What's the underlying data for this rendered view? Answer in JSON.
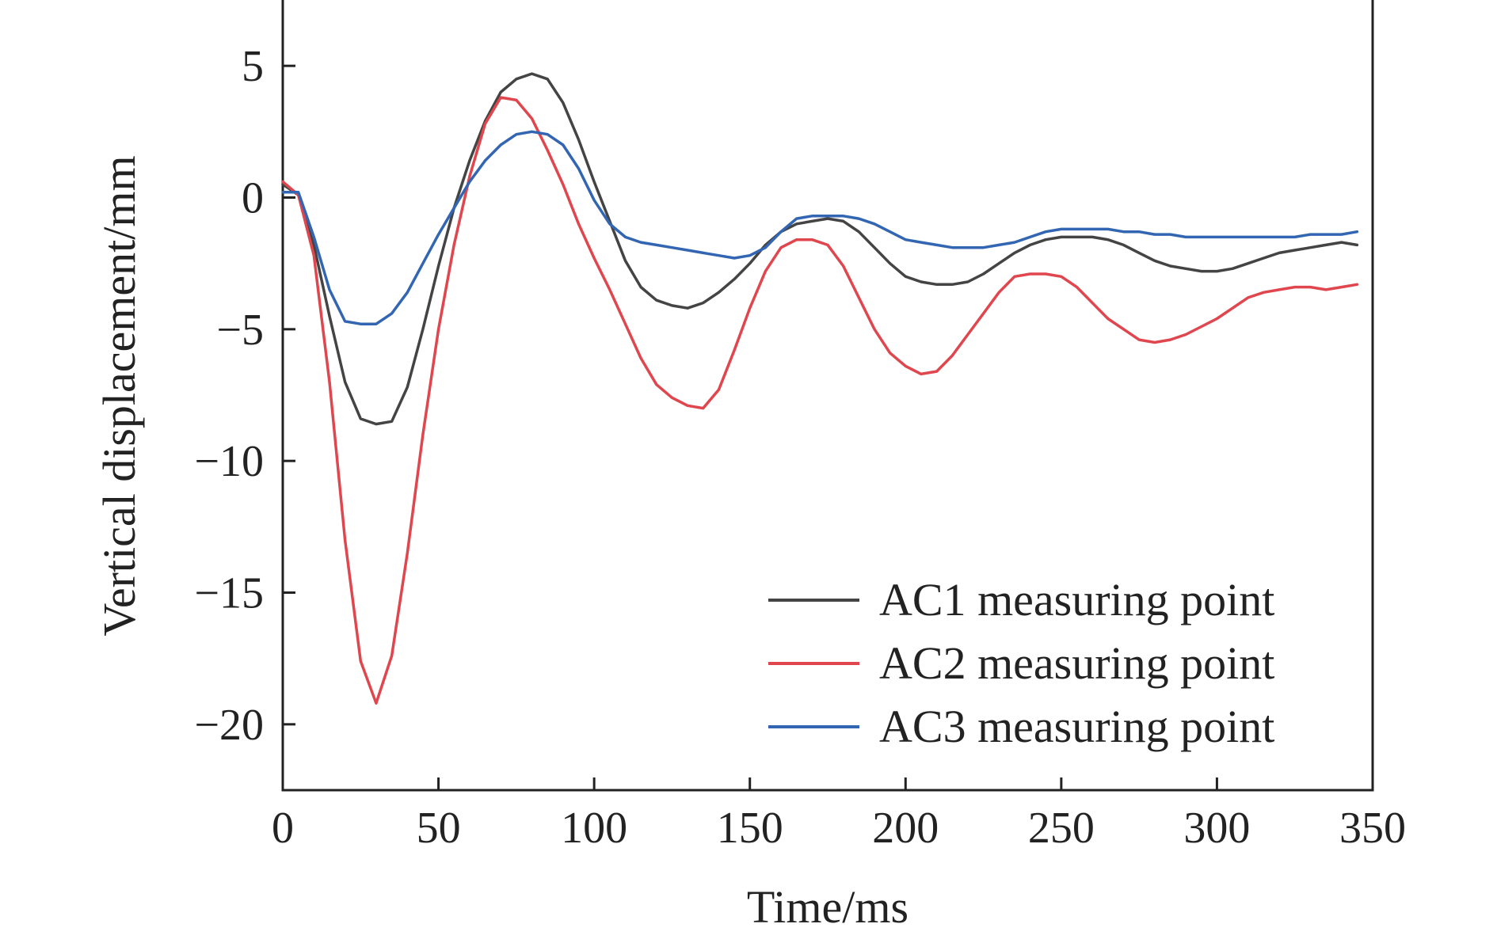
{
  "chart_data": {
    "type": "line",
    "title": "",
    "xlabel": "Time/ms",
    "ylabel": "Vertical displacement/mm",
    "xlim": [
      0,
      350
    ],
    "ylim": [
      -22.5,
      7.5
    ],
    "x_ticks": [
      0,
      50,
      100,
      150,
      200,
      250,
      300,
      350
    ],
    "x_tick_labels": [
      "0",
      "50",
      "100",
      "150",
      "200",
      "250",
      "300",
      "350"
    ],
    "y_ticks": [
      5,
      0,
      -5,
      -10,
      -15,
      -20
    ],
    "y_tick_labels": [
      "5",
      "0",
      "−5",
      "−10",
      "−15",
      "−20"
    ],
    "grid": false,
    "legend_position": "bottom-right",
    "series": [
      {
        "name": "AC1 measuring point",
        "color": "#444444",
        "x": [
          0,
          5,
          10,
          15,
          20,
          25,
          30,
          35,
          40,
          45,
          50,
          55,
          60,
          65,
          70,
          75,
          80,
          85,
          90,
          95,
          100,
          105,
          110,
          115,
          120,
          125,
          130,
          135,
          140,
          145,
          150,
          155,
          160,
          165,
          170,
          175,
          180,
          185,
          190,
          195,
          200,
          205,
          210,
          215,
          220,
          225,
          230,
          235,
          240,
          245,
          250,
          255,
          260,
          265,
          270,
          275,
          280,
          285,
          290,
          295,
          300,
          305,
          310,
          315,
          320,
          325,
          330,
          335,
          340,
          345
        ],
        "y": [
          0.5,
          0.1,
          -1.8,
          -4.5,
          -7.0,
          -8.4,
          -8.6,
          -8.5,
          -7.2,
          -5.0,
          -2.6,
          -0.4,
          1.4,
          2.9,
          4.0,
          4.5,
          4.7,
          4.5,
          3.6,
          2.2,
          0.6,
          -0.9,
          -2.4,
          -3.4,
          -3.9,
          -4.1,
          -4.2,
          -4.0,
          -3.6,
          -3.1,
          -2.5,
          -1.8,
          -1.3,
          -1.0,
          -0.9,
          -0.8,
          -0.9,
          -1.3,
          -1.9,
          -2.5,
          -3.0,
          -3.2,
          -3.3,
          -3.3,
          -3.2,
          -2.9,
          -2.5,
          -2.1,
          -1.8,
          -1.6,
          -1.5,
          -1.5,
          -1.5,
          -1.6,
          -1.8,
          -2.1,
          -2.4,
          -2.6,
          -2.7,
          -2.8,
          -2.8,
          -2.7,
          -2.5,
          -2.3,
          -2.1,
          -2.0,
          -1.9,
          -1.8,
          -1.7,
          -1.8
        ]
      },
      {
        "name": "AC2 measuring point",
        "color": "#e0464e",
        "x": [
          0,
          5,
          10,
          15,
          20,
          25,
          30,
          35,
          40,
          45,
          50,
          55,
          60,
          65,
          70,
          75,
          80,
          85,
          90,
          95,
          100,
          105,
          110,
          115,
          120,
          125,
          130,
          135,
          140,
          145,
          150,
          155,
          160,
          165,
          170,
          175,
          180,
          185,
          190,
          195,
          200,
          205,
          210,
          215,
          220,
          225,
          230,
          235,
          240,
          245,
          250,
          255,
          260,
          265,
          270,
          275,
          280,
          285,
          290,
          295,
          300,
          305,
          310,
          315,
          320,
          325,
          330,
          335,
          340,
          345
        ],
        "y": [
          0.6,
          0.1,
          -2.2,
          -7.0,
          -13.0,
          -17.6,
          -19.2,
          -17.4,
          -13.5,
          -9.0,
          -5.0,
          -1.8,
          0.8,
          2.8,
          3.8,
          3.7,
          3.0,
          1.8,
          0.5,
          -1.0,
          -2.3,
          -3.5,
          -4.8,
          -6.1,
          -7.1,
          -7.6,
          -7.9,
          -8.0,
          -7.3,
          -5.8,
          -4.2,
          -2.8,
          -1.9,
          -1.6,
          -1.6,
          -1.8,
          -2.6,
          -3.8,
          -5.0,
          -5.9,
          -6.4,
          -6.7,
          -6.6,
          -6.0,
          -5.2,
          -4.4,
          -3.6,
          -3.0,
          -2.9,
          -2.9,
          -3.0,
          -3.4,
          -4.0,
          -4.6,
          -5.0,
          -5.4,
          -5.5,
          -5.4,
          -5.2,
          -4.9,
          -4.6,
          -4.2,
          -3.8,
          -3.6,
          -3.5,
          -3.4,
          -3.4,
          -3.5,
          -3.4,
          -3.3
        ]
      },
      {
        "name": "AC3 measuring point",
        "color": "#3366b2",
        "x": [
          0,
          5,
          10,
          15,
          20,
          25,
          30,
          35,
          40,
          45,
          50,
          55,
          60,
          65,
          70,
          75,
          80,
          85,
          90,
          95,
          100,
          105,
          110,
          115,
          120,
          125,
          130,
          135,
          140,
          145,
          150,
          155,
          160,
          165,
          170,
          175,
          180,
          185,
          190,
          195,
          200,
          205,
          210,
          215,
          220,
          225,
          230,
          235,
          240,
          245,
          250,
          255,
          260,
          265,
          270,
          275,
          280,
          285,
          290,
          295,
          300,
          305,
          310,
          315,
          320,
          325,
          330,
          335,
          340,
          345
        ],
        "y": [
          0.2,
          0.2,
          -1.5,
          -3.5,
          -4.7,
          -4.8,
          -4.8,
          -4.4,
          -3.6,
          -2.5,
          -1.4,
          -0.4,
          0.6,
          1.4,
          2.0,
          2.4,
          2.5,
          2.4,
          2.0,
          1.1,
          -0.1,
          -1.0,
          -1.5,
          -1.7,
          -1.8,
          -1.9,
          -2.0,
          -2.1,
          -2.2,
          -2.3,
          -2.2,
          -1.9,
          -1.3,
          -0.8,
          -0.7,
          -0.7,
          -0.7,
          -0.8,
          -1.0,
          -1.3,
          -1.6,
          -1.7,
          -1.8,
          -1.9,
          -1.9,
          -1.9,
          -1.8,
          -1.7,
          -1.5,
          -1.3,
          -1.2,
          -1.2,
          -1.2,
          -1.2,
          -1.3,
          -1.3,
          -1.4,
          -1.4,
          -1.5,
          -1.5,
          -1.5,
          -1.5,
          -1.5,
          -1.5,
          -1.5,
          -1.5,
          -1.4,
          -1.4,
          -1.4,
          -1.3
        ]
      }
    ]
  }
}
